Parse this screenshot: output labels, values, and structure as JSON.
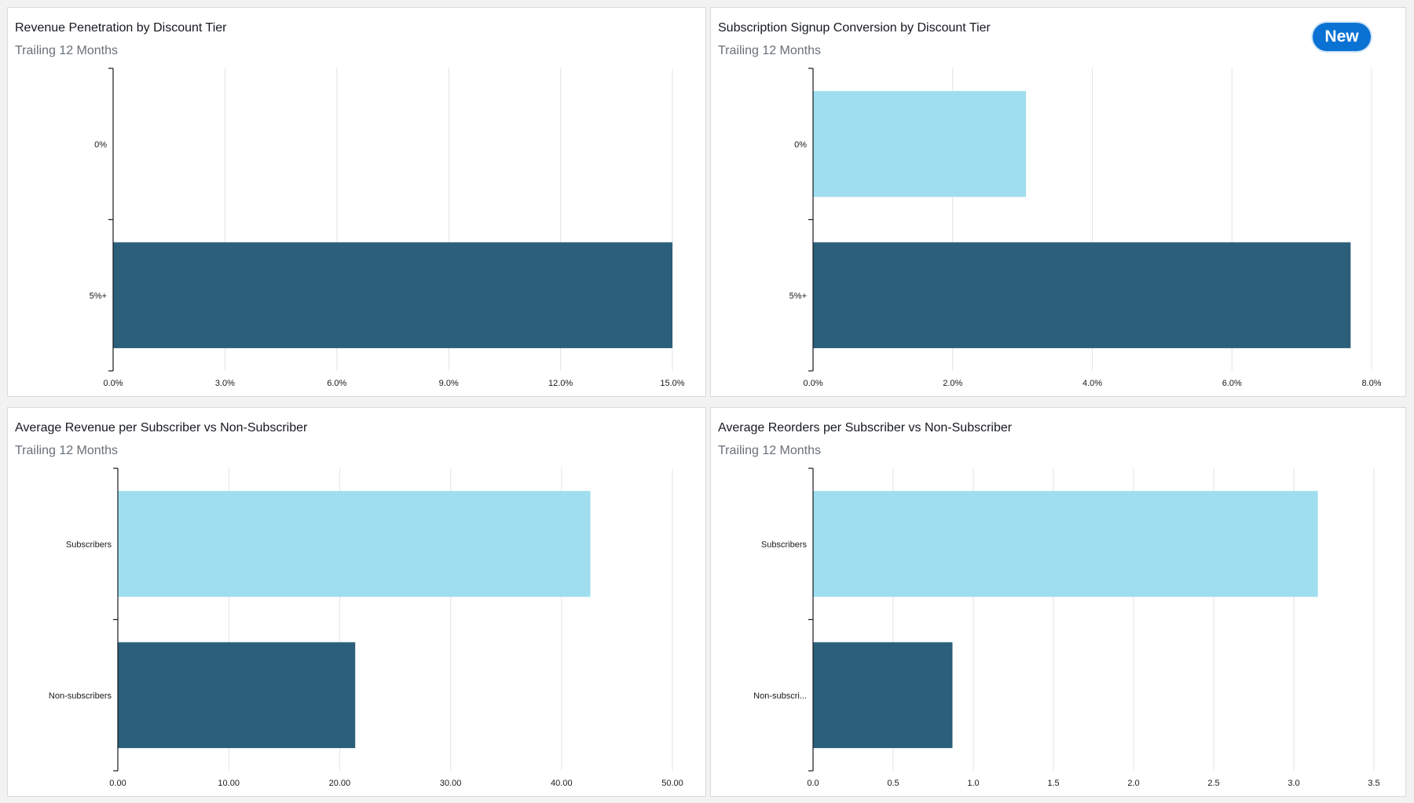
{
  "badge": {
    "label": "New"
  },
  "charts": [
    {
      "title": "Revenue Penetration by Discount Tier",
      "subtitle": "Trailing 12 Months",
      "chart_data": {
        "type": "bar",
        "orientation": "horizontal",
        "categories": [
          "0%",
          "5%+"
        ],
        "values": [
          0,
          15.0
        ],
        "xlim": [
          0,
          15
        ],
        "xticks": [
          "0.0%",
          "3.0%",
          "6.0%",
          "9.0%",
          "12.0%",
          "15.0%"
        ],
        "grid": true,
        "colors": [
          "#9fdeef",
          "#2b5f7a"
        ]
      }
    },
    {
      "title": "Subscription Signup Conversion by Discount Tier",
      "subtitle": "Trailing 12 Months",
      "chart_data": {
        "type": "bar",
        "orientation": "horizontal",
        "categories": [
          "0%",
          "5%+"
        ],
        "values": [
          3.05,
          7.7
        ],
        "xlim": [
          0,
          8
        ],
        "xticks": [
          "0.0%",
          "2.0%",
          "4.0%",
          "6.0%",
          "8.0%"
        ],
        "grid": true,
        "colors": [
          "#9fdeef",
          "#2b5f7a"
        ]
      }
    },
    {
      "title": "Average Revenue per Subscriber vs Non-Subscriber",
      "subtitle": "Trailing 12 Months",
      "chart_data": {
        "type": "bar",
        "orientation": "horizontal",
        "categories": [
          "Subscribers",
          "Non-subscribers"
        ],
        "values": [
          42.6,
          21.4
        ],
        "xlim": [
          0,
          50
        ],
        "xticks": [
          "0.00",
          "10.00",
          "20.00",
          "30.00",
          "40.00",
          "50.00"
        ],
        "grid": true,
        "colors": [
          "#9fdeef",
          "#2b5f7a"
        ]
      }
    },
    {
      "title": "Average Reorders per Subscriber vs Non-Subscriber",
      "subtitle": "Trailing 12 Months",
      "chart_data": {
        "type": "bar",
        "orientation": "horizontal",
        "categories": [
          "Subscribers",
          "Non-subscri..."
        ],
        "values": [
          3.15,
          0.87
        ],
        "xlim": [
          0,
          3.5
        ],
        "xticks": [
          "0.0",
          "0.5",
          "1.0",
          "1.5",
          "2.0",
          "2.5",
          "3.0",
          "3.5"
        ],
        "grid": true,
        "colors": [
          "#9fdeef",
          "#2b5f7a"
        ]
      }
    }
  ]
}
